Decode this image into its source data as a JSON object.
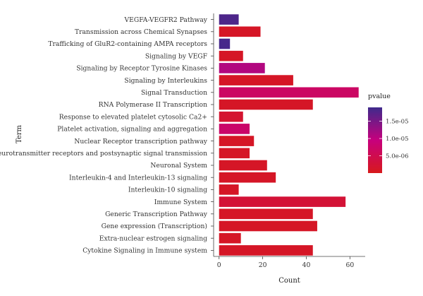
{
  "chart_data": {
    "type": "bar",
    "orientation": "horizontal",
    "xlabel": "Count",
    "ylabel": "Term",
    "xlim": [
      -2.5,
      67
    ],
    "xticks": [
      0,
      20,
      40,
      60
    ],
    "grid": false,
    "legend": {
      "title": "pvalue",
      "placement": "right",
      "range": [
        0,
        1.9e-05
      ],
      "ticks": [
        {
          "value": 1.5e-05,
          "label": "1.5e-05"
        },
        {
          "value": 1e-05,
          "label": "1.0e-05"
        },
        {
          "value": 5e-06,
          "label": "5.0e-06"
        }
      ],
      "colors": {
        "low": "#D7191C",
        "mid": "#C7007D",
        "high": "#3F2A8C"
      }
    },
    "bars": [
      {
        "term": "VEGFA-VEGFR2 Pathway",
        "count": 9,
        "pvalue": 1.8e-05
      },
      {
        "term": "Transmission across Chemical Synapses",
        "count": 19,
        "pvalue": 1e-06
      },
      {
        "term": "Trafficking of GluR2-containing AMPA receptors",
        "count": 5,
        "pvalue": 1.85e-05
      },
      {
        "term": "Signaling by VEGF",
        "count": 11,
        "pvalue": 1e-06
      },
      {
        "term": "Signaling by Receptor Tyrosine Kinases",
        "count": 21,
        "pvalue": 1.1e-05
      },
      {
        "term": "Signaling by Interleukins",
        "count": 34,
        "pvalue": 1e-06
      },
      {
        "term": "Signal Transduction",
        "count": 64,
        "pvalue": 7e-06
      },
      {
        "term": "RNA Polymerase II Transcription",
        "count": 43,
        "pvalue": 1e-06
      },
      {
        "term": "Response to elevated platelet cytosolic Ca2+",
        "count": 11,
        "pvalue": 2e-06
      },
      {
        "term": "Platelet activation, signaling and aggregation",
        "count": 14,
        "pvalue": 7.5e-06
      },
      {
        "term": "Nuclear Receptor transcription pathway",
        "count": 16,
        "pvalue": 1e-06
      },
      {
        "term": "Neurotransmitter receptors and postsynaptic signal transmission",
        "count": 14,
        "pvalue": 1e-06
      },
      {
        "term": "Neuronal System",
        "count": 22,
        "pvalue": 1e-06
      },
      {
        "term": "Interleukin-4 and Interleukin-13 signaling",
        "count": 26,
        "pvalue": 1e-06
      },
      {
        "term": "Interleukin-10 signaling",
        "count": 9,
        "pvalue": 1e-06
      },
      {
        "term": "Immune System",
        "count": 58,
        "pvalue": 2.5e-06
      },
      {
        "term": "Generic Transcription Pathway",
        "count": 43,
        "pvalue": 1e-06
      },
      {
        "term": "Gene expression (Transcription)",
        "count": 45,
        "pvalue": 1e-06
      },
      {
        "term": "Extra-nuclear estrogen signaling",
        "count": 10,
        "pvalue": 1e-06
      },
      {
        "term": "Cytokine Signaling in Immune system",
        "count": 43,
        "pvalue": 1e-06
      }
    ]
  }
}
